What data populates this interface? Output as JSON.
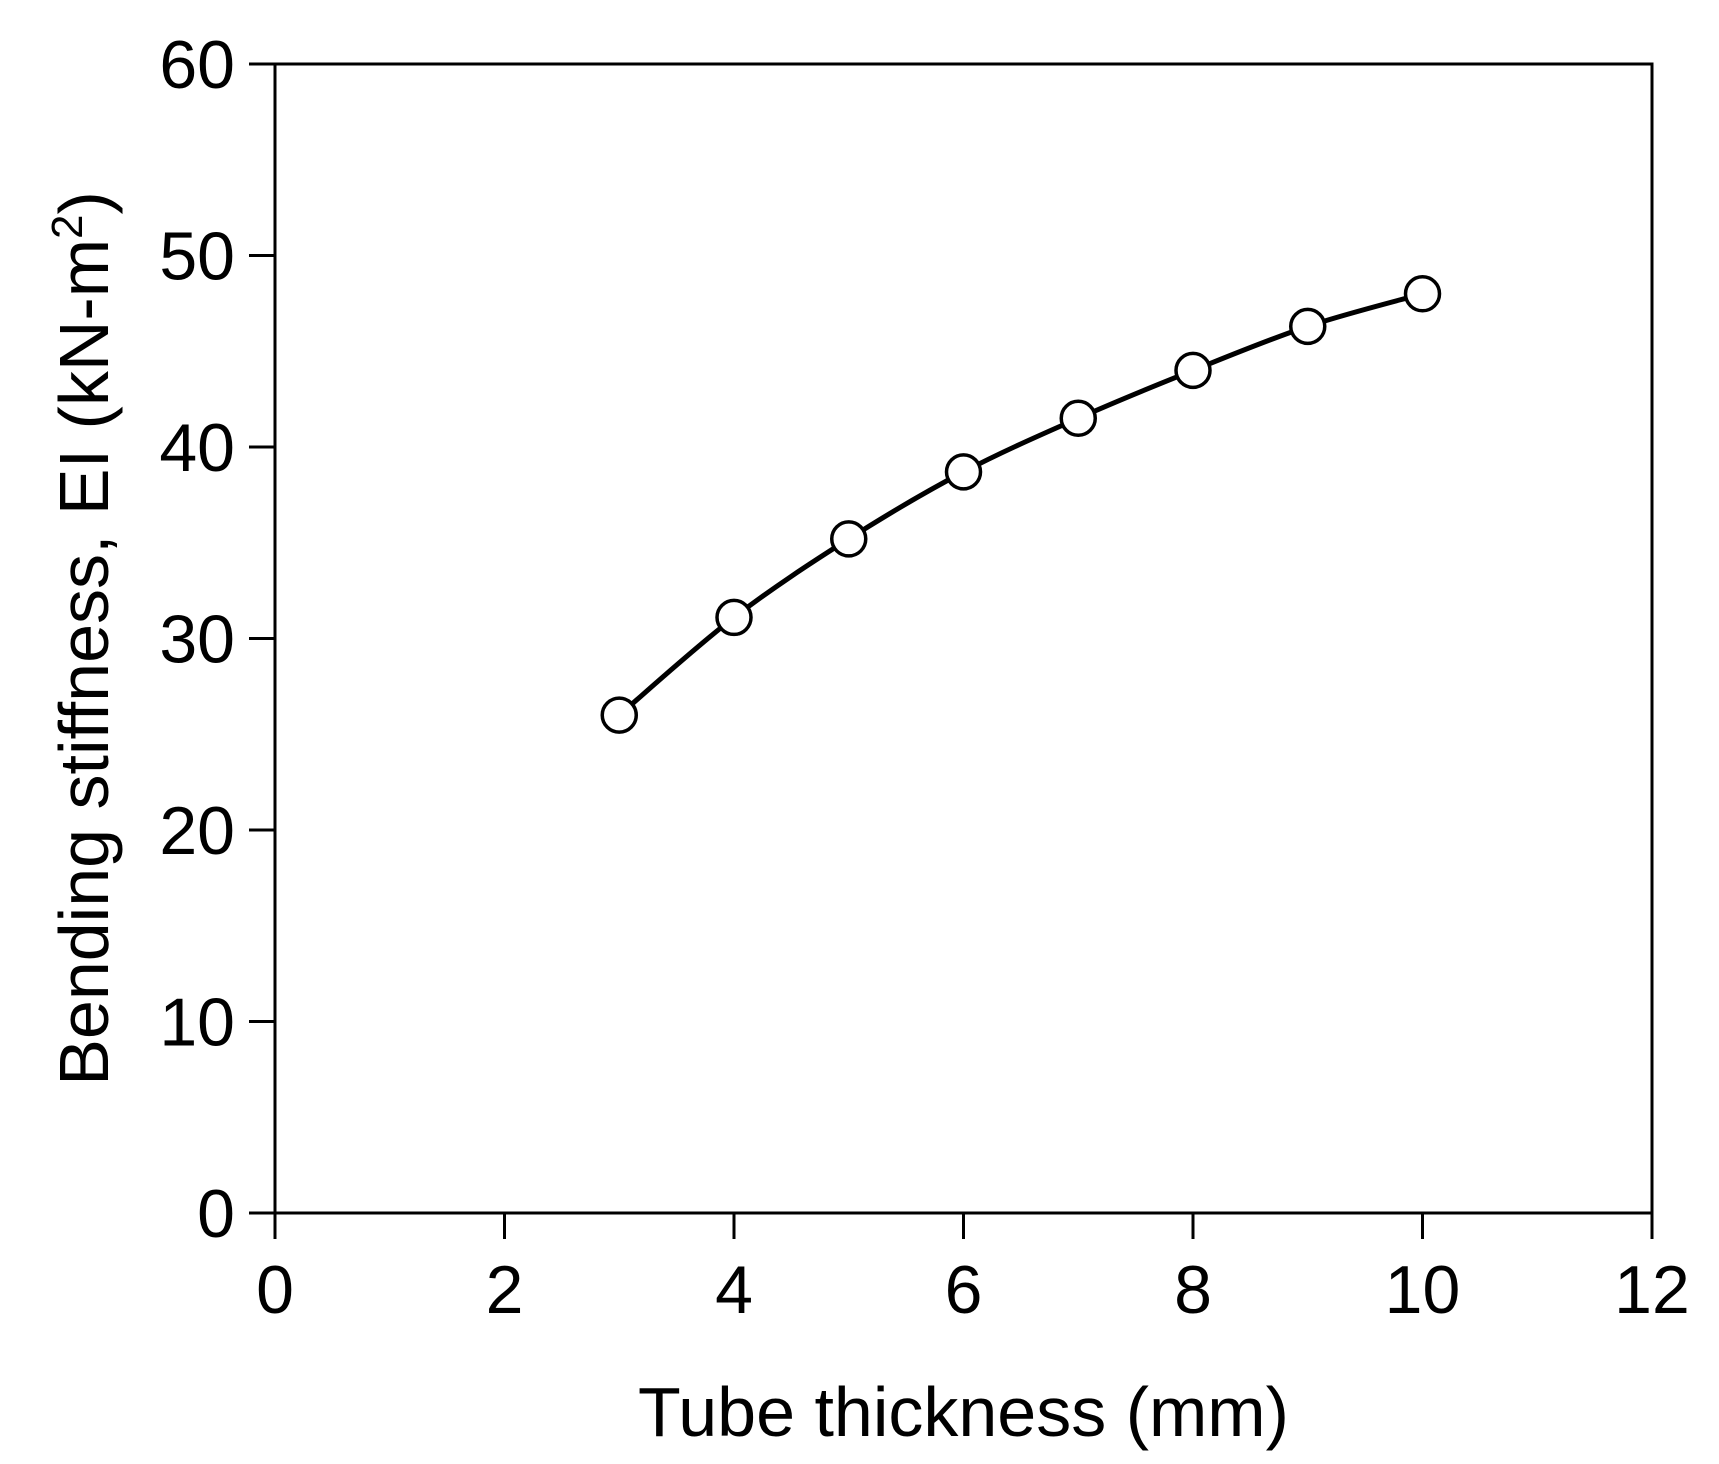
{
  "chart_data": {
    "type": "line",
    "xlabel": "Tube thickness (mm)",
    "ylabel_main": "Bending stiffness, EI (kN-m",
    "ylabel_sup": "2",
    "ylabel_end": ")",
    "xlim": [
      0,
      12
    ],
    "ylim": [
      0,
      60
    ],
    "x_ticks": [
      0,
      2,
      4,
      6,
      8,
      10,
      12
    ],
    "y_ticks": [
      0,
      10,
      20,
      30,
      40,
      50,
      60
    ],
    "grid": false,
    "legend": "none",
    "marker": "open-circle",
    "line_color": "#000000",
    "series": [
      {
        "x": [
          3,
          4,
          5,
          6,
          7,
          8,
          9,
          10
        ],
        "values": [
          26,
          31.1,
          35.2,
          38.7,
          41.5,
          44,
          46.3,
          48
        ]
      }
    ]
  }
}
